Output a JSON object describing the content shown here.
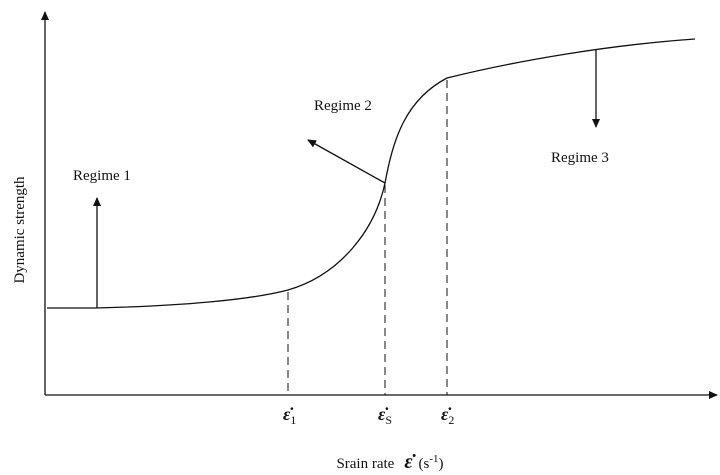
{
  "axes": {
    "y_label": "Dynamic strength",
    "x_label": "Srain rate",
    "x_symbol": "ε̇",
    "x_unit": "(s",
    "x_unit_sup": "-1",
    "x_unit_end": ")"
  },
  "ticks": [
    {
      "symbol": "ε̇",
      "subscript": "1"
    },
    {
      "symbol": "ε̇",
      "subscript": "S"
    },
    {
      "symbol": "ε̇",
      "subscript": "2"
    }
  ],
  "regimes": [
    "Regime 1",
    "Regime 2",
    "Regime 3"
  ]
}
